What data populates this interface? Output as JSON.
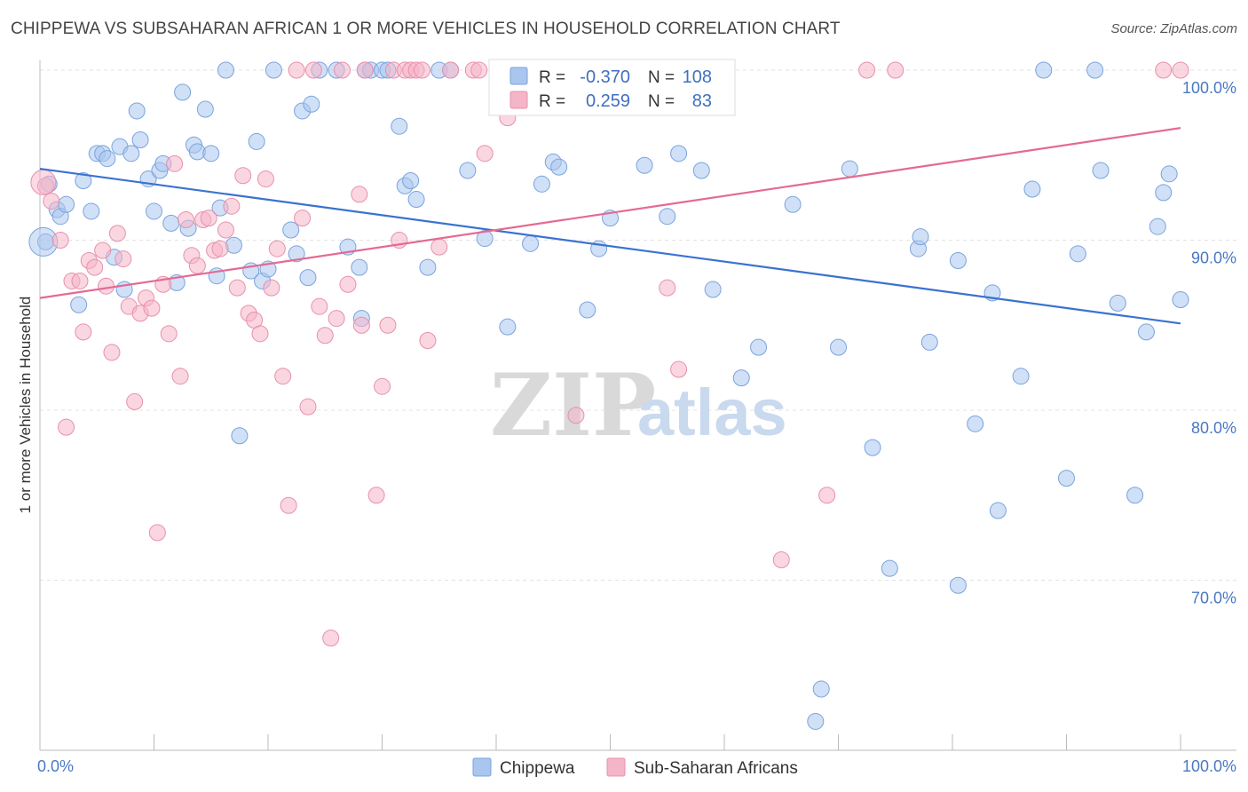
{
  "header": {
    "title": "CHIPPEWA VS SUBSAHARAN AFRICAN 1 OR MORE VEHICLES IN HOUSEHOLD CORRELATION CHART",
    "source": "Source: ZipAtlas.com"
  },
  "watermark": {
    "zip": "ZIP",
    "atlas": "atlas"
  },
  "legend": {
    "rows": [
      {
        "r_label": "R =",
        "r_value": "-0.370",
        "n_label": "N =",
        "n_value": "108",
        "color": "#aac6ee"
      },
      {
        "r_label": "R =",
        "r_value": "0.259",
        "n_label": "N =",
        "n_value": "83",
        "color": "#f5b5c9"
      }
    ]
  },
  "chart_data": {
    "type": "scatter",
    "title": "CHIPPEWA VS SUBSAHARAN AFRICAN 1 OR MORE VEHICLES IN HOUSEHOLD CORRELATION CHART",
    "xlabel": "",
    "ylabel": "1 or more Vehicles in Household",
    "xlim": [
      0,
      100
    ],
    "ylim": [
      60,
      100
    ],
    "x_tick_labels": [
      "0.0%",
      "100.0%"
    ],
    "y_ticks": [
      70,
      80,
      90,
      100
    ],
    "y_tick_labels": [
      "70.0%",
      "80.0%",
      "90.0%",
      "100.0%"
    ],
    "grid": true,
    "legend_position": "top-center",
    "series": [
      {
        "name": "Chippewa",
        "color": "#aac6ee",
        "stroke": "#7aa3dd",
        "trend": {
          "x": [
            0,
            100
          ],
          "y": [
            94.2,
            85.1
          ],
          "color": "#3a72d0"
        },
        "points": [
          [
            0.5,
            89.9
          ],
          [
            0.8,
            93.3
          ],
          [
            1.5,
            91.8
          ],
          [
            1.8,
            91.4
          ],
          [
            2.3,
            92.1
          ],
          [
            3.4,
            86.2
          ],
          [
            3.8,
            93.5
          ],
          [
            4.5,
            91.7
          ],
          [
            5.0,
            95.1
          ],
          [
            5.5,
            95.1
          ],
          [
            5.9,
            94.8
          ],
          [
            6.5,
            89.0
          ],
          [
            7.0,
            95.5
          ],
          [
            7.4,
            87.1
          ],
          [
            8.0,
            95.1
          ],
          [
            8.5,
            97.6
          ],
          [
            8.8,
            95.9
          ],
          [
            9.5,
            93.6
          ],
          [
            10.0,
            91.7
          ],
          [
            10.5,
            94.1
          ],
          [
            10.8,
            94.5
          ],
          [
            11.5,
            91.0
          ],
          [
            12.0,
            87.5
          ],
          [
            12.5,
            98.7
          ],
          [
            13.0,
            90.7
          ],
          [
            13.5,
            95.6
          ],
          [
            13.8,
            95.2
          ],
          [
            14.5,
            97.7
          ],
          [
            15.0,
            95.1
          ],
          [
            15.5,
            87.9
          ],
          [
            15.8,
            91.9
          ],
          [
            16.3,
            100
          ],
          [
            17.0,
            89.7
          ],
          [
            17.5,
            78.5
          ],
          [
            18.5,
            88.2
          ],
          [
            19.0,
            95.8
          ],
          [
            19.5,
            87.6
          ],
          [
            20.0,
            88.3
          ],
          [
            20.5,
            100
          ],
          [
            22.0,
            90.6
          ],
          [
            22.5,
            89.2
          ],
          [
            23.0,
            97.6
          ],
          [
            23.5,
            87.8
          ],
          [
            23.8,
            98.0
          ],
          [
            24.5,
            100
          ],
          [
            26.0,
            100
          ],
          [
            27.0,
            89.6
          ],
          [
            28.0,
            88.4
          ],
          [
            28.2,
            85.4
          ],
          [
            28.5,
            100
          ],
          [
            29.0,
            100
          ],
          [
            30.0,
            100
          ],
          [
            30.5,
            100
          ],
          [
            31.5,
            96.7
          ],
          [
            32.0,
            93.2
          ],
          [
            32.5,
            93.5
          ],
          [
            33.0,
            92.4
          ],
          [
            34.0,
            88.4
          ],
          [
            35.0,
            100
          ],
          [
            36.0,
            100
          ],
          [
            37.5,
            94.1
          ],
          [
            39.0,
            90.1
          ],
          [
            41.0,
            84.9
          ],
          [
            43.0,
            89.8
          ],
          [
            44.0,
            93.3
          ],
          [
            45.0,
            94.6
          ],
          [
            45.5,
            94.3
          ],
          [
            46.5,
            100
          ],
          [
            47.5,
            100
          ],
          [
            48.0,
            85.9
          ],
          [
            49.0,
            89.5
          ],
          [
            50.0,
            91.3
          ],
          [
            51.0,
            100
          ],
          [
            53.0,
            94.4
          ],
          [
            55.0,
            91.4
          ],
          [
            56.0,
            95.1
          ],
          [
            58.0,
            94.1
          ],
          [
            59.0,
            87.1
          ],
          [
            60.0,
            100
          ],
          [
            61.5,
            81.9
          ],
          [
            63.0,
            83.7
          ],
          [
            66.0,
            92.1
          ],
          [
            68.0,
            61.7
          ],
          [
            68.5,
            63.6
          ],
          [
            70.0,
            83.7
          ],
          [
            71.0,
            94.2
          ],
          [
            73.0,
            77.8
          ],
          [
            74.5,
            70.7
          ],
          [
            77.0,
            89.5
          ],
          [
            77.2,
            90.2
          ],
          [
            78.0,
            84.0
          ],
          [
            80.5,
            69.7
          ],
          [
            80.5,
            88.8
          ],
          [
            82.0,
            79.2
          ],
          [
            83.5,
            86.9
          ],
          [
            84.0,
            74.1
          ],
          [
            86.0,
            82.0
          ],
          [
            87.0,
            93.0
          ],
          [
            88.0,
            100
          ],
          [
            90.0,
            76.0
          ],
          [
            91.0,
            89.2
          ],
          [
            92.5,
            100
          ],
          [
            93.0,
            94.1
          ],
          [
            94.5,
            86.3
          ],
          [
            96.0,
            75.0
          ],
          [
            97.0,
            84.6
          ],
          [
            98.0,
            90.8
          ],
          [
            98.5,
            92.8
          ],
          [
            99.0,
            93.9
          ],
          [
            100.0,
            86.5
          ]
        ]
      },
      {
        "name": "Sub-Saharan Africans",
        "color": "#f5b5c9",
        "stroke": "#e890ac",
        "trend": {
          "x": [
            0,
            100
          ],
          "y": [
            86.6,
            96.6
          ],
          "color": "#e46a92"
        },
        "points": [
          [
            0.5,
            93.2
          ],
          [
            1.0,
            92.3
          ],
          [
            1.8,
            90.0
          ],
          [
            2.3,
            79.0
          ],
          [
            2.8,
            87.6
          ],
          [
            3.5,
            87.6
          ],
          [
            3.8,
            84.6
          ],
          [
            4.3,
            88.8
          ],
          [
            4.8,
            88.4
          ],
          [
            5.5,
            89.4
          ],
          [
            5.8,
            87.3
          ],
          [
            6.3,
            83.4
          ],
          [
            6.8,
            90.4
          ],
          [
            7.3,
            88.9
          ],
          [
            7.8,
            86.1
          ],
          [
            8.3,
            80.5
          ],
          [
            8.8,
            85.7
          ],
          [
            9.3,
            86.6
          ],
          [
            9.8,
            86.0
          ],
          [
            10.3,
            72.8
          ],
          [
            10.8,
            87.4
          ],
          [
            11.3,
            84.5
          ],
          [
            11.8,
            94.5
          ],
          [
            12.3,
            82.0
          ],
          [
            12.8,
            91.2
          ],
          [
            13.3,
            89.1
          ],
          [
            13.8,
            88.5
          ],
          [
            14.3,
            91.2
          ],
          [
            14.8,
            91.3
          ],
          [
            15.3,
            89.4
          ],
          [
            15.8,
            89.5
          ],
          [
            16.3,
            90.6
          ],
          [
            16.8,
            92.0
          ],
          [
            17.3,
            87.2
          ],
          [
            17.8,
            93.8
          ],
          [
            18.3,
            85.7
          ],
          [
            18.8,
            85.3
          ],
          [
            19.3,
            84.5
          ],
          [
            19.8,
            93.6
          ],
          [
            20.3,
            87.2
          ],
          [
            20.8,
            89.5
          ],
          [
            21.3,
            82.0
          ],
          [
            21.8,
            74.4
          ],
          [
            22.5,
            100
          ],
          [
            23.0,
            91.3
          ],
          [
            23.5,
            80.2
          ],
          [
            24.0,
            100
          ],
          [
            24.5,
            86.1
          ],
          [
            25.0,
            84.4
          ],
          [
            25.5,
            66.6
          ],
          [
            26.0,
            85.4
          ],
          [
            26.5,
            100
          ],
          [
            27.0,
            87.4
          ],
          [
            28.0,
            92.7
          ],
          [
            28.2,
            85.0
          ],
          [
            28.5,
            100
          ],
          [
            29.5,
            75.0
          ],
          [
            30.0,
            81.4
          ],
          [
            30.5,
            85.0
          ],
          [
            31.0,
            100
          ],
          [
            31.5,
            90.0
          ],
          [
            32.0,
            100
          ],
          [
            32.5,
            100
          ],
          [
            33.0,
            100
          ],
          [
            33.5,
            100
          ],
          [
            34.0,
            84.1
          ],
          [
            35.0,
            89.6
          ],
          [
            36.0,
            100
          ],
          [
            38.0,
            100
          ],
          [
            39.0,
            95.1
          ],
          [
            41.0,
            97.2
          ],
          [
            47.0,
            79.7
          ],
          [
            52.0,
            100
          ],
          [
            55.0,
            87.2
          ],
          [
            56.0,
            82.4
          ],
          [
            65.0,
            71.2
          ],
          [
            69.0,
            75.0
          ],
          [
            72.5,
            100
          ],
          [
            75.0,
            100
          ],
          [
            100.0,
            100
          ],
          [
            98.5,
            100
          ],
          [
            38.5,
            100
          ],
          [
            40.5,
            100
          ]
        ]
      }
    ]
  }
}
